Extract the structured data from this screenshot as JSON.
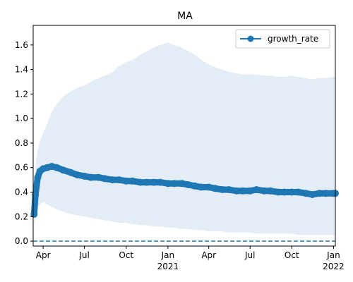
{
  "chart_data": {
    "type": "line",
    "title": "MA",
    "xlabel": "",
    "ylabel": "",
    "x_range": [
      "2020-03-10",
      "2022-01-05"
    ],
    "ylim": [
      -0.04,
      1.76
    ],
    "legend_placement": "top-right",
    "grid": false,
    "colors": {
      "series": "#1f77b4",
      "band": "#dbe7f3"
    },
    "x_ticks": [
      {
        "date": "2020-04-01",
        "label": "Apr",
        "sublabel": ""
      },
      {
        "date": "2020-07-01",
        "label": "Jul",
        "sublabel": ""
      },
      {
        "date": "2020-10-01",
        "label": "Oct",
        "sublabel": ""
      },
      {
        "date": "2021-01-01",
        "label": "Jan",
        "sublabel": "2021"
      },
      {
        "date": "2021-04-01",
        "label": "Apr",
        "sublabel": ""
      },
      {
        "date": "2021-07-01",
        "label": "Jul",
        "sublabel": ""
      },
      {
        "date": "2021-10-01",
        "label": "Oct",
        "sublabel": ""
      },
      {
        "date": "2022-01-01",
        "label": "Jan",
        "sublabel": "2022"
      }
    ],
    "y_ticks": [
      0.0,
      0.2,
      0.4,
      0.6,
      0.8,
      1.0,
      1.2,
      1.4,
      1.6
    ],
    "y_tick_labels": [
      "0.0",
      "0.2",
      "0.4",
      "0.6",
      "0.8",
      "1.0",
      "1.2",
      "1.4",
      "1.6"
    ],
    "reference_line": {
      "y": 0.0,
      "style": "dashed"
    },
    "series": [
      {
        "name": "growth_rate",
        "x": [
          "2020-03-12",
          "2020-03-15",
          "2020-03-20",
          "2020-03-25",
          "2020-04-01",
          "2020-04-10",
          "2020-04-20",
          "2020-05-01",
          "2020-05-15",
          "2020-06-01",
          "2020-06-15",
          "2020-07-01",
          "2020-07-15",
          "2020-08-01",
          "2020-08-15",
          "2020-09-01",
          "2020-09-15",
          "2020-10-01",
          "2020-10-15",
          "2020-11-01",
          "2020-11-15",
          "2020-12-01",
          "2020-12-15",
          "2021-01-01",
          "2021-01-15",
          "2021-02-01",
          "2021-02-15",
          "2021-03-01",
          "2021-03-15",
          "2021-04-01",
          "2021-04-15",
          "2021-05-01",
          "2021-05-15",
          "2021-06-01",
          "2021-06-15",
          "2021-07-01",
          "2021-07-15",
          "2021-08-01",
          "2021-08-15",
          "2021-09-01",
          "2021-09-15",
          "2021-10-01",
          "2021-10-15",
          "2021-11-01",
          "2021-11-15",
          "2021-12-01",
          "2021-12-15",
          "2022-01-01",
          "2022-01-05"
        ],
        "values": [
          0.22,
          0.38,
          0.52,
          0.57,
          0.59,
          0.6,
          0.61,
          0.6,
          0.58,
          0.56,
          0.54,
          0.53,
          0.52,
          0.52,
          0.51,
          0.5,
          0.5,
          0.49,
          0.49,
          0.48,
          0.48,
          0.48,
          0.48,
          0.47,
          0.47,
          0.47,
          0.46,
          0.45,
          0.44,
          0.44,
          0.43,
          0.42,
          0.42,
          0.41,
          0.41,
          0.41,
          0.42,
          0.41,
          0.41,
          0.4,
          0.4,
          0.4,
          0.4,
          0.39,
          0.38,
          0.39,
          0.39,
          0.39,
          0.39
        ],
        "band_upper": [
          0.4,
          0.62,
          0.75,
          0.82,
          0.88,
          0.96,
          1.05,
          1.12,
          1.18,
          1.22,
          1.25,
          1.27,
          1.3,
          1.33,
          1.35,
          1.38,
          1.43,
          1.46,
          1.48,
          1.52,
          1.55,
          1.58,
          1.6,
          1.62,
          1.6,
          1.58,
          1.55,
          1.52,
          1.48,
          1.44,
          1.42,
          1.4,
          1.38,
          1.37,
          1.36,
          1.36,
          1.36,
          1.35,
          1.35,
          1.34,
          1.34,
          1.35,
          1.34,
          1.33,
          1.32,
          1.33,
          1.33,
          1.34,
          1.34
        ],
        "band_lower": [
          0.1,
          0.18,
          0.26,
          0.3,
          0.32,
          0.3,
          0.28,
          0.26,
          0.24,
          0.22,
          0.21,
          0.2,
          0.19,
          0.18,
          0.17,
          0.16,
          0.15,
          0.15,
          0.14,
          0.13,
          0.13,
          0.12,
          0.12,
          0.11,
          0.11,
          0.1,
          0.1,
          0.09,
          0.09,
          0.08,
          0.08,
          0.08,
          0.07,
          0.07,
          0.07,
          0.07,
          0.06,
          0.06,
          0.06,
          0.06,
          0.06,
          0.06,
          0.05,
          0.05,
          0.05,
          0.05,
          0.05,
          0.05,
          0.05
        ]
      }
    ]
  }
}
